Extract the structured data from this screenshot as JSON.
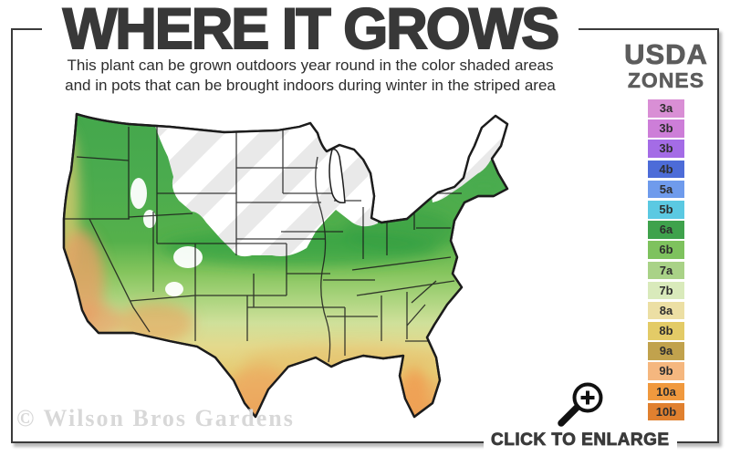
{
  "header": {
    "title": "WHERE IT GROWS",
    "subtitle_line1": "This plant can be grown outdoors year round in the color shaded areas",
    "subtitle_line2": "and in pots that can be brought indoors during winter in the striped area"
  },
  "legend": {
    "heading_line1": "USDA",
    "heading_line2": "ZONES",
    "zones": [
      {
        "label": "3a",
        "color": "#d98fd5"
      },
      {
        "label": "3b",
        "color": "#cd7ed8"
      },
      {
        "label": "3b",
        "color": "#a46ce6"
      },
      {
        "label": "4b",
        "color": "#4d6cd8"
      },
      {
        "label": "5a",
        "color": "#6f9bec"
      },
      {
        "label": "5b",
        "color": "#5bc9e2"
      },
      {
        "label": "6a",
        "color": "#3fa24c"
      },
      {
        "label": "6b",
        "color": "#7ec25e"
      },
      {
        "label": "7a",
        "color": "#a9d287"
      },
      {
        "label": "7b",
        "color": "#d9eabb"
      },
      {
        "label": "8a",
        "color": "#ecdfa4"
      },
      {
        "label": "8b",
        "color": "#e3cb67"
      },
      {
        "label": "9a",
        "color": "#c1a24d"
      },
      {
        "label": "9b",
        "color": "#f5b77f"
      },
      {
        "label": "10a",
        "color": "#f0993e"
      },
      {
        "label": "10b",
        "color": "#e0802f"
      }
    ]
  },
  "map": {
    "stripe_color": "#e9e9e9",
    "outline_color": "#1c1c1c"
  },
  "footer": {
    "watermark": "© Wilson Bros Gardens",
    "enlarge_label": "CLICK TO ENLARGE"
  }
}
